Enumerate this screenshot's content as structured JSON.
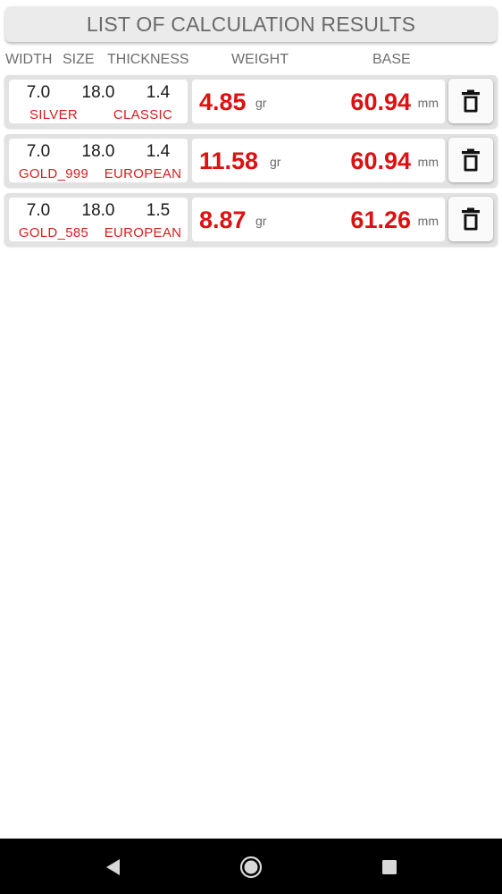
{
  "header": {
    "title": "LIST OF CALCULATION RESULTS"
  },
  "columns": {
    "width": "WIDTH",
    "size": "SIZE",
    "thickness": "THICKNESS",
    "weight": "WEIGHT",
    "base": "BASE"
  },
  "results": [
    {
      "width": "7.0",
      "size": "18.0",
      "thickness": "1.4",
      "metal": "SILVER",
      "profile": "CLASSIC",
      "weight": "4.85",
      "weight_unit": "gr",
      "base": "60.94",
      "base_unit": "mm"
    },
    {
      "width": "7.0",
      "size": "18.0",
      "thickness": "1.4",
      "metal": "GOLD_999",
      "profile": "EUROPEAN",
      "weight": "11.58",
      "weight_unit": "gr",
      "base": "60.94",
      "base_unit": "mm"
    },
    {
      "width": "7.0",
      "size": "18.0",
      "thickness": "1.5",
      "metal": "GOLD_585",
      "profile": "EUROPEAN",
      "weight": "8.87",
      "weight_unit": "gr",
      "base": "61.26",
      "base_unit": "mm"
    }
  ],
  "icons": {
    "delete": "trash-icon",
    "nav_back": "back-triangle-icon",
    "nav_home": "home-circle-icon",
    "nav_recents": "recents-square-icon"
  },
  "colors": {
    "accent_red": "#dd1111",
    "label_red": "#d42020",
    "header_gray": "#6a6a6a",
    "row_background": "#e2e2e2",
    "nav_background": "#000000"
  }
}
